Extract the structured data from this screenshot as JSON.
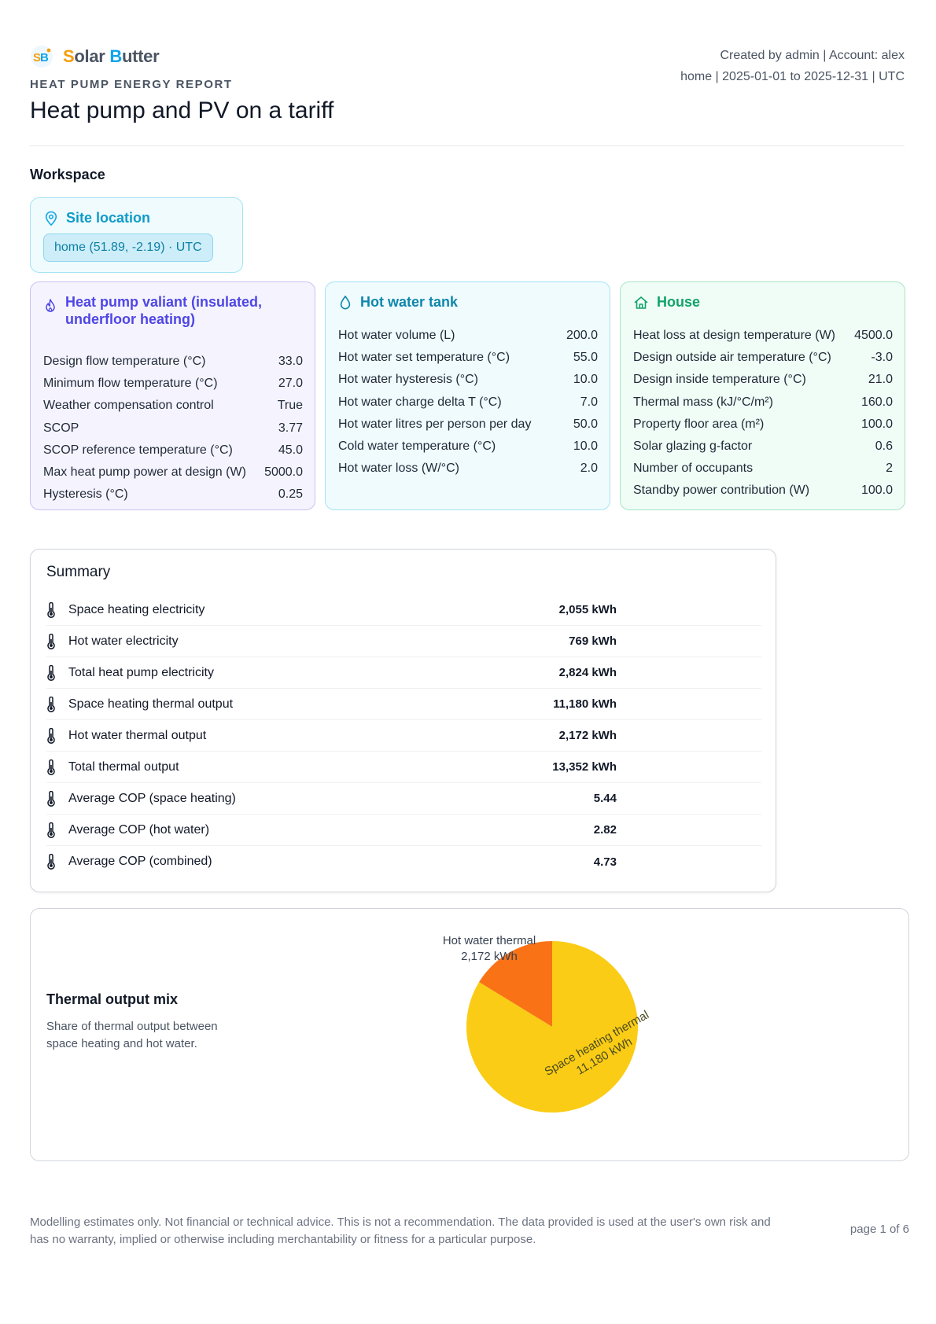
{
  "brand": {
    "logo_text": "SB",
    "name_first": "S",
    "name_mid": "olar ",
    "name_b": "B",
    "name_rest": "utter"
  },
  "report": {
    "kicker": "HEAT PUMP ENERGY REPORT",
    "title": "Heat pump and PV on a tariff",
    "meta_line1": "Created by admin | Account: alex",
    "meta_line2": "home | 2025-01-01 to 2025-12-31 | UTC"
  },
  "workspace": {
    "label": "Workspace",
    "site": {
      "title": "Site location",
      "chip": "home (51.89, -2.19) · UTC"
    }
  },
  "heat_pump": {
    "title": "Heat pump valiant (insulated, underfloor heating)",
    "rows": [
      {
        "label": "Design flow temperature (°C)",
        "value": "33.0"
      },
      {
        "label": "Minimum flow temperature (°C)",
        "value": "27.0"
      },
      {
        "label": "Weather compensation control",
        "value": "True"
      },
      {
        "label": "SCOP",
        "value": "3.77"
      },
      {
        "label": "SCOP reference temperature (°C)",
        "value": "45.0"
      },
      {
        "label": "Max heat pump power at design (W)",
        "value": "5000.0"
      },
      {
        "label": "Hysteresis (°C)",
        "value": "0.25"
      }
    ]
  },
  "hot_water": {
    "title": "Hot water tank",
    "rows": [
      {
        "label": "Hot water volume (L)",
        "value": "200.0"
      },
      {
        "label": "Hot water set temperature (°C)",
        "value": "55.0"
      },
      {
        "label": "Hot water hysteresis (°C)",
        "value": "10.0"
      },
      {
        "label": "Hot water charge delta T (°C)",
        "value": "7.0"
      },
      {
        "label": "Hot water litres per person per day",
        "value": "50.0"
      },
      {
        "label": "Cold water temperature (°C)",
        "value": "10.0"
      },
      {
        "label": "Hot water loss (W/°C)",
        "value": "2.0"
      }
    ]
  },
  "house": {
    "title": "House",
    "rows": [
      {
        "label": "Heat loss at design temperature (W)",
        "value": "4500.0"
      },
      {
        "label": "Design outside air temperature (°C)",
        "value": "-3.0"
      },
      {
        "label": "Design inside temperature (°C)",
        "value": "21.0"
      },
      {
        "label": "Thermal mass (kJ/°C/m²)",
        "value": "160.0"
      },
      {
        "label": "Property floor area (m²)",
        "value": "100.0"
      },
      {
        "label": "Solar glazing g-factor",
        "value": "0.6"
      },
      {
        "label": "Number of occupants",
        "value": "2"
      },
      {
        "label": "Standby power contribution (W)",
        "value": "100.0"
      }
    ]
  },
  "summary": {
    "title": "Summary",
    "icon": "thermometer-icon",
    "rows": [
      {
        "label": "Space heating electricity",
        "value": "2,055 kWh"
      },
      {
        "label": "Hot water electricity",
        "value": "769 kWh"
      },
      {
        "label": "Total heat pump electricity",
        "value": "2,824 kWh"
      },
      {
        "label": "Space heating thermal output",
        "value": "11,180 kWh"
      },
      {
        "label": "Hot water thermal output",
        "value": "2,172 kWh"
      },
      {
        "label": "Total thermal output",
        "value": "13,352 kWh"
      },
      {
        "label": "Average COP (space heating)",
        "value": "5.44"
      },
      {
        "label": "Average COP (hot water)",
        "value": "2.82"
      },
      {
        "label": "Average COP (combined)",
        "value": "4.73"
      }
    ]
  },
  "mix": {
    "title": "Thermal output mix",
    "description": "Share of thermal output between space heating and hot water."
  },
  "chart_data": {
    "type": "pie",
    "categories": [
      "Space heating thermal",
      "Hot water thermal"
    ],
    "values": [
      11180,
      2172
    ],
    "value_labels": [
      "11,180 kWh",
      "2,172 kWh"
    ],
    "colors": [
      "#facc15",
      "#f97316"
    ],
    "start_angle": "12 o'clock",
    "direction": "counterclockwise"
  },
  "footer": {
    "disclaimer": "Modelling estimates only. Not financial or technical advice. This is not a recommendation. The data provided is used at the user's own risk and has no warranty, implied or otherwise including merchantability or fitness for a particular purpose.",
    "page": "page 1 of 6"
  },
  "colors": {
    "heat_pump_accent": "#4f46e5",
    "hot_water_accent": "#0e87ac",
    "house_accent": "#10a36a",
    "site_accent": "#0ea5e9"
  }
}
